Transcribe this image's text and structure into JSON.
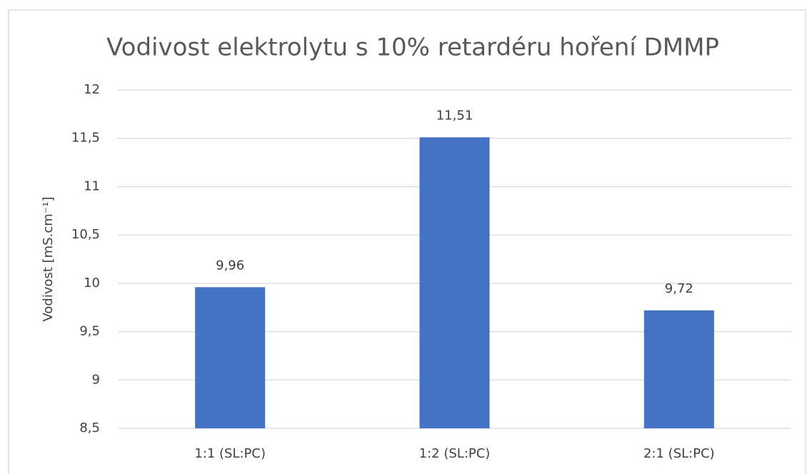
{
  "chart_data": {
    "type": "bar",
    "title": "Vodivost elektrolytu s 10% retardéru hoření DMMP",
    "y_label": "Vodivost [mS.cm⁻¹]",
    "categories": [
      "1:1 (SL:PC)",
      "1:2 (SL:PC)",
      "2:1 (SL:PC)"
    ],
    "values": [
      9.96,
      11.51,
      9.72
    ],
    "value_labels": [
      "9,96",
      "11,51",
      "9,72"
    ],
    "color": "#4472c4",
    "ylim": [
      8.5,
      12
    ],
    "yticks": [
      {
        "value": 8.5,
        "label": "8,5"
      },
      9,
      {
        "value": 9.5,
        "label": "9,5"
      },
      10,
      {
        "value": 10.5,
        "label": "10,5"
      },
      11,
      {
        "value": 11.5,
        "label": "11,5"
      },
      12
    ],
    "grid": true
  }
}
